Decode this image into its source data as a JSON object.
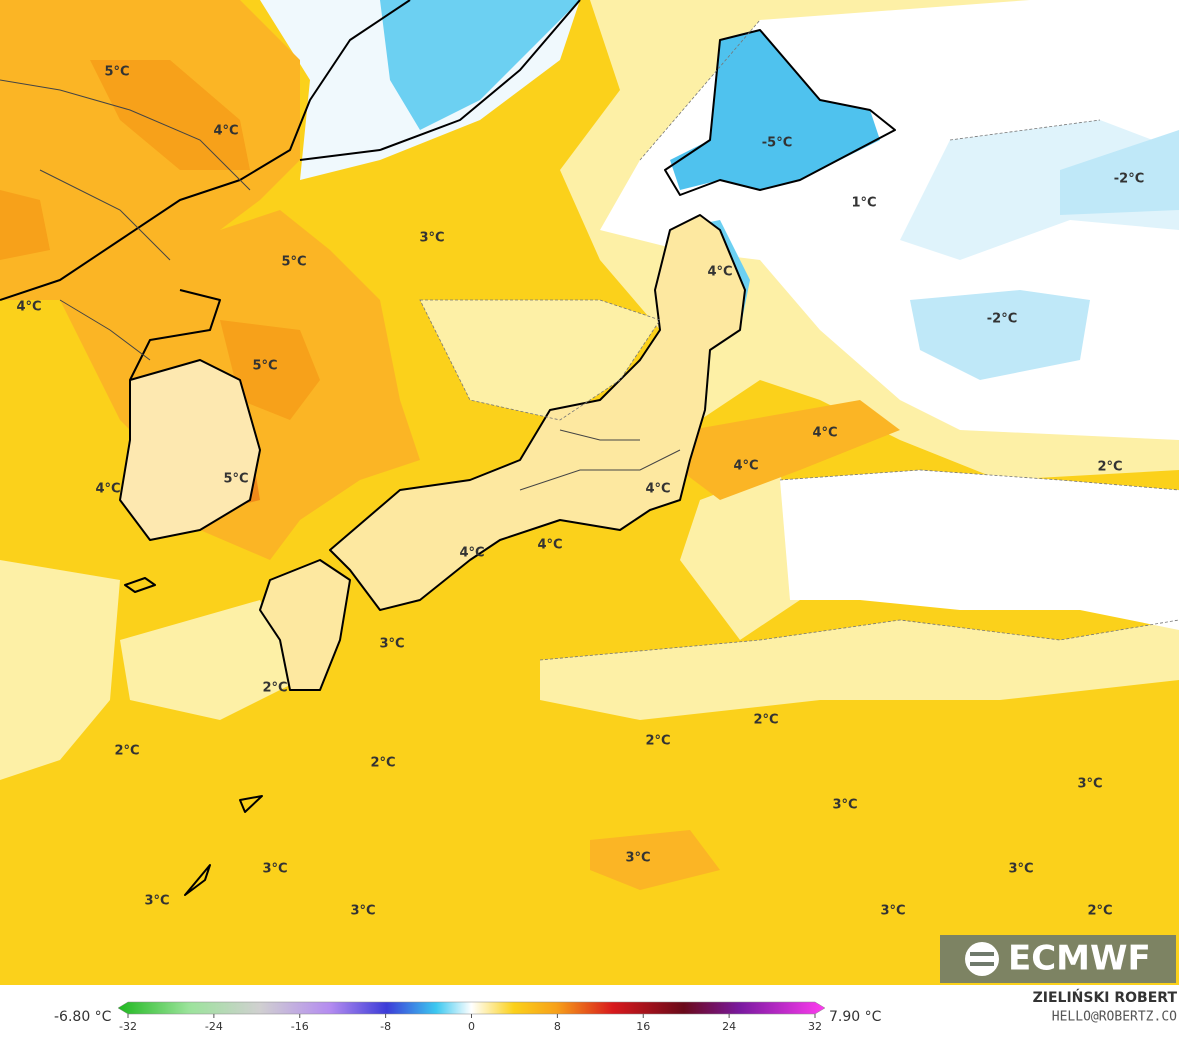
{
  "map": {
    "contour_labels": [
      "5°C",
      "4°C",
      "3°C",
      "5°C",
      "4°C",
      "5°C",
      "-5°C",
      "1°C",
      "-2°C",
      "4°C",
      "-2°C",
      "4°C",
      "4°C",
      "2°C",
      "5°C",
      "4°C",
      "4°C",
      "4°C",
      "4°C",
      "3°C",
      "2°C",
      "2°C",
      "2°C",
      "2°C",
      "2°C",
      "3°C",
      "3°C",
      "3°C",
      "3°C",
      "3°C",
      "3°C",
      "3°C",
      "3°C",
      "2°C"
    ],
    "logo": "ECMWF"
  },
  "colorbar": {
    "min_label": "-6.80 °C",
    "max_label": "7.90 °C",
    "range": [
      -32,
      32
    ],
    "ticks": [
      -32,
      -24,
      -16,
      -8,
      0,
      8,
      16,
      24,
      32
    ]
  },
  "credits": {
    "author": "ZIELIŃSKI ROBERT",
    "contact": "HELLO@ROBERTZ.CO"
  }
}
